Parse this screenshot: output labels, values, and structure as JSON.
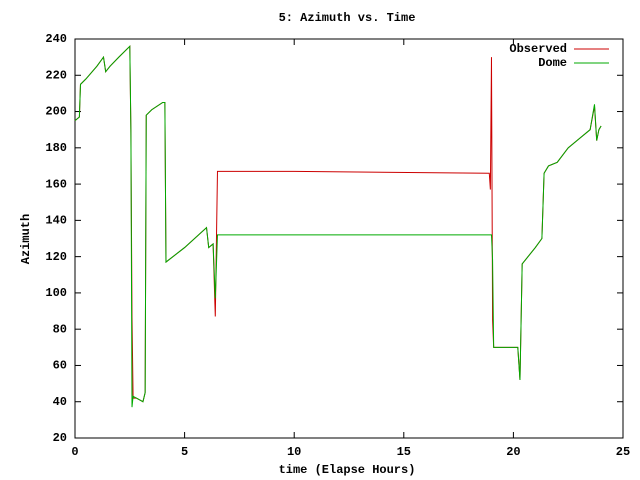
{
  "chart_data": {
    "type": "line",
    "title": "5: Azimuth vs. Time",
    "x_label": "time (Elapse Hours)",
    "y_label": "Azimuth",
    "legend_position": "top-right",
    "grid": false,
    "xlim": [
      0,
      25
    ],
    "xticks": [
      0,
      5,
      10,
      15,
      20,
      25
    ],
    "ylim": [
      20,
      240
    ],
    "yticks": [
      20,
      40,
      60,
      80,
      100,
      120,
      140,
      160,
      180,
      200,
      220,
      240
    ],
    "series": [
      {
        "name": "Observed",
        "color": "#cc0000",
        "x": [
          0,
          0.2,
          0.25,
          0.5,
          1.0,
          1.3,
          1.4,
          1.6,
          2.0,
          2.5,
          2.55,
          2.6,
          2.65,
          2.8,
          3.1,
          3.2,
          3.25,
          3.5,
          4.0,
          4.1,
          4.15,
          5.0,
          6.0,
          6.1,
          6.3,
          6.4,
          6.5,
          10.0,
          18.9,
          18.95,
          19.0,
          19.05,
          19.1,
          20.0,
          20.2,
          20.3,
          20.4,
          21.0,
          21.3,
          21.4,
          21.6,
          22.0,
          22.5,
          23.0,
          23.5,
          23.7,
          23.8,
          23.9,
          24.0
        ],
        "values": [
          195,
          197,
          215,
          218,
          225,
          230,
          222,
          225,
          230,
          236,
          188,
          87,
          42,
          42,
          40,
          45,
          198,
          201,
          205,
          205,
          117,
          125,
          136,
          125,
          127,
          87,
          167,
          167,
          166,
          157,
          230,
          85,
          70,
          70,
          70,
          52,
          116,
          125,
          130,
          166,
          170,
          172,
          180,
          185,
          190,
          203,
          184,
          190,
          192
        ]
      },
      {
        "name": "Dome",
        "color": "#00aa00",
        "x": [
          0,
          0.2,
          0.25,
          0.5,
          1.0,
          1.3,
          1.4,
          1.6,
          2.0,
          2.5,
          2.55,
          2.6,
          2.65,
          2.8,
          3.1,
          3.2,
          3.25,
          3.5,
          4.0,
          4.1,
          4.15,
          5.0,
          6.0,
          6.1,
          6.3,
          6.4,
          6.5,
          10.0,
          18.9,
          19.0,
          19.05,
          19.1,
          20.0,
          20.2,
          20.3,
          20.4,
          21.0,
          21.3,
          21.4,
          21.6,
          22.0,
          22.5,
          23.0,
          23.5,
          23.7,
          23.8,
          23.9,
          24.0
        ],
        "values": [
          195,
          197,
          215,
          218,
          225,
          230,
          222,
          225,
          230,
          236,
          190,
          37,
          43,
          42,
          40,
          45,
          198,
          201,
          205,
          205,
          117,
          125,
          136,
          125,
          127,
          97,
          132,
          132,
          132,
          132,
          118,
          70,
          70,
          70,
          52,
          116,
          125,
          130,
          166,
          170,
          172,
          180,
          185,
          190,
          204,
          184,
          190,
          192
        ]
      }
    ]
  }
}
